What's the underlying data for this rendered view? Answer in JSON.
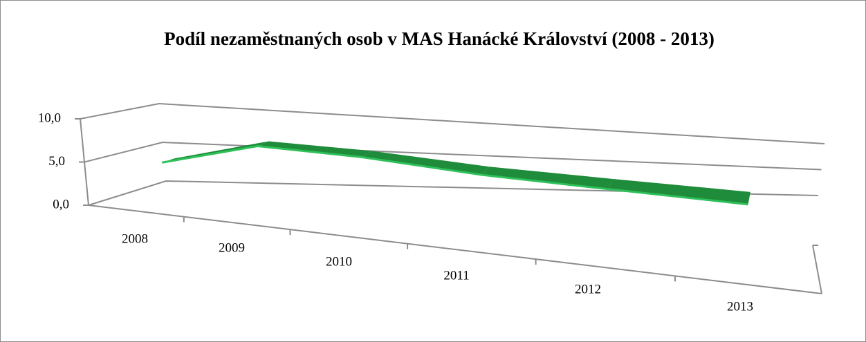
{
  "chart_data": {
    "type": "line3d",
    "title": "Podíl nezaměstnaných osob v MAS Hanácké Království (2008 - 2013)",
    "categories": [
      "2008",
      "2009",
      "2010",
      "2011",
      "2012",
      "2013"
    ],
    "series": [
      {
        "name": "Podíl nezaměstnaných osob",
        "color": "#1e8c3a",
        "values": [
          4.3,
          7.4,
          7.2,
          6.3,
          5.9,
          5.5
        ]
      }
    ],
    "ylim": [
      0,
      10
    ],
    "yticks": [
      {
        "value": 0,
        "label": "0,0"
      },
      {
        "value": 5,
        "label": "5,0"
      },
      {
        "value": 10,
        "label": "10,0"
      }
    ],
    "grid": true
  }
}
